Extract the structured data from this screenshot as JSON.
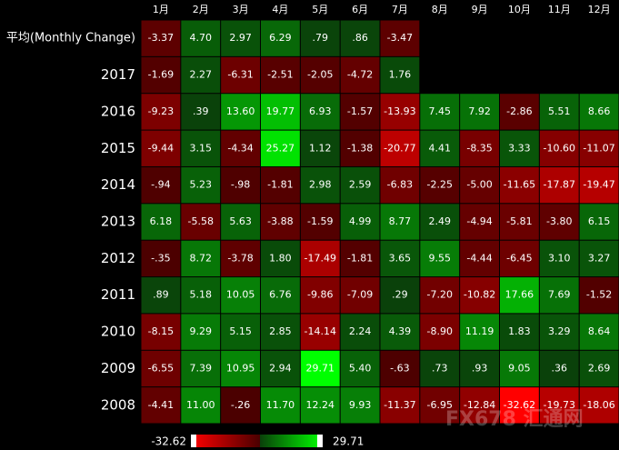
{
  "chart_data": {
    "type": "heatmap",
    "categories": [
      "1月",
      "2月",
      "3月",
      "4月",
      "5月",
      "6月",
      "7月",
      "8月",
      "9月",
      "10月",
      "11月",
      "12月"
    ],
    "rows": [
      {
        "name": "平均(Monthly Change)",
        "values": [
          -3.37,
          4.7,
          2.97,
          6.29,
          0.79,
          0.86,
          -3.47,
          null,
          null,
          null,
          null,
          null
        ],
        "value_labels": [
          "-3.37",
          "4.70",
          "2.97",
          "6.29",
          ".79",
          ".86",
          "-3.47",
          null,
          null,
          null,
          null,
          null
        ]
      },
      {
        "name": "2017",
        "values": [
          -1.69,
          2.27,
          -6.31,
          -2.51,
          -2.05,
          -4.72,
          1.76,
          null,
          null,
          null,
          null,
          null
        ],
        "value_labels": [
          "-1.69",
          "2.27",
          "-6.31",
          "-2.51",
          "-2.05",
          "-4.72",
          "1.76",
          null,
          null,
          null,
          null,
          null
        ]
      },
      {
        "name": "2016",
        "values": [
          -9.23,
          0.39,
          13.6,
          19.77,
          6.93,
          -1.57,
          -13.93,
          7.45,
          7.92,
          -2.86,
          5.51,
          8.66
        ],
        "value_labels": [
          "-9.23",
          ".39",
          "13.60",
          "19.77",
          "6.93",
          "-1.57",
          "-13.93",
          "7.45",
          "7.92",
          "-2.86",
          "5.51",
          "8.66"
        ]
      },
      {
        "name": "2015",
        "values": [
          -9.44,
          3.15,
          -4.34,
          25.27,
          1.12,
          -1.38,
          -20.77,
          4.41,
          -8.35,
          3.33,
          -10.6,
          -11.07
        ],
        "value_labels": [
          "-9.44",
          "3.15",
          "-4.34",
          "25.27",
          "1.12",
          "-1.38",
          "-20.77",
          "4.41",
          "-8.35",
          "3.33",
          "-10.60",
          "-11.07"
        ]
      },
      {
        "name": "2014",
        "values": [
          -0.94,
          5.23,
          -0.98,
          -1.81,
          2.98,
          2.59,
          -6.83,
          -2.25,
          -5,
          -11.65,
          -17.87,
          -19.47
        ],
        "value_labels": [
          "-.94",
          "5.23",
          "-.98",
          "-1.81",
          "2.98",
          "2.59",
          "-6.83",
          "-2.25",
          "-5.00",
          "-11.65",
          "-17.87",
          "-19.47"
        ]
      },
      {
        "name": "2013",
        "values": [
          6.18,
          -5.58,
          5.63,
          -3.88,
          -1.59,
          4.99,
          8.77,
          2.49,
          -4.94,
          -5.81,
          -3.8,
          6.15
        ],
        "value_labels": [
          "6.18",
          "-5.58",
          "5.63",
          "-3.88",
          "-1.59",
          "4.99",
          "8.77",
          "2.49",
          "-4.94",
          "-5.81",
          "-3.80",
          "6.15"
        ]
      },
      {
        "name": "2012",
        "values": [
          -0.35,
          8.72,
          -3.78,
          1.8,
          -17.49,
          -1.81,
          3.65,
          9.55,
          -4.44,
          -6.45,
          3.1,
          3.27
        ],
        "value_labels": [
          "-.35",
          "8.72",
          "-3.78",
          "1.80",
          "-17.49",
          "-1.81",
          "3.65",
          "9.55",
          "-4.44",
          "-6.45",
          "3.10",
          "3.27"
        ]
      },
      {
        "name": "2011",
        "values": [
          0.89,
          5.18,
          10.05,
          6.76,
          -9.86,
          -7.09,
          0.29,
          -7.2,
          -10.82,
          17.66,
          7.69,
          -1.52
        ],
        "value_labels": [
          ".89",
          "5.18",
          "10.05",
          "6.76",
          "-9.86",
          "-7.09",
          ".29",
          "-7.20",
          "-10.82",
          "17.66",
          "7.69",
          "-1.52"
        ]
      },
      {
        "name": "2010",
        "values": [
          -8.15,
          9.29,
          5.15,
          2.85,
          -14.14,
          2.24,
          4.39,
          -8.9,
          11.19,
          1.83,
          3.29,
          8.64
        ],
        "value_labels": [
          "-8.15",
          "9.29",
          "5.15",
          "2.85",
          "-14.14",
          "2.24",
          "4.39",
          "-8.90",
          "11.19",
          "1.83",
          "3.29",
          "8.64"
        ]
      },
      {
        "name": "2009",
        "values": [
          -6.55,
          7.39,
          10.95,
          2.94,
          29.71,
          5.4,
          -0.63,
          0.73,
          0.93,
          9.05,
          0.36,
          2.69
        ],
        "value_labels": [
          "-6.55",
          "7.39",
          "10.95",
          "2.94",
          "29.71",
          "5.40",
          "-.63",
          ".73",
          ".93",
          "9.05",
          ".36",
          "2.69"
        ]
      },
      {
        "name": "2008",
        "values": [
          -4.41,
          11,
          -0.26,
          11.7,
          12.24,
          9.93,
          -11.37,
          -6.95,
          -12.84,
          -32.62,
          -19.73,
          -18.06
        ],
        "value_labels": [
          "-4.41",
          "11.00",
          "-.26",
          "11.70",
          "12.24",
          "9.93",
          "-11.37",
          "-6.95",
          "-12.84",
          "-32.62",
          "-19.73",
          "-18.06"
        ]
      }
    ],
    "color_range": [
      -32.62,
      29.71
    ],
    "colorscale": [
      "#ff0000",
      "#4a0000",
      "#0a3f0a",
      "#00ff00"
    ],
    "watermark": "FX678 汇通网"
  }
}
